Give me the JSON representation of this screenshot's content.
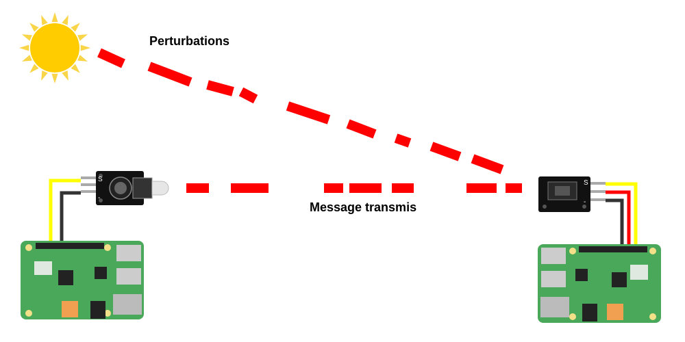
{
  "labels": {
    "perturbations": "Perturbations",
    "message": "Message transmis"
  },
  "transmitter_module": {
    "pin_s": "S",
    "pin_minus": "-"
  },
  "receiver_module": {
    "pin_s": "S",
    "pin_minus": "-"
  },
  "colors": {
    "beam": "#ff0000",
    "sun": "#ffcc00",
    "sun_rays": "#f9d54a",
    "board_green": "#4aa85a",
    "module_black": "#111111",
    "wire_yellow": "#ffff00",
    "wire_red": "#ff0000",
    "wire_black": "#333333"
  },
  "icons": [
    "sun-icon",
    "raspberry-pi-board",
    "ir-led-module",
    "ir-receiver-module"
  ]
}
